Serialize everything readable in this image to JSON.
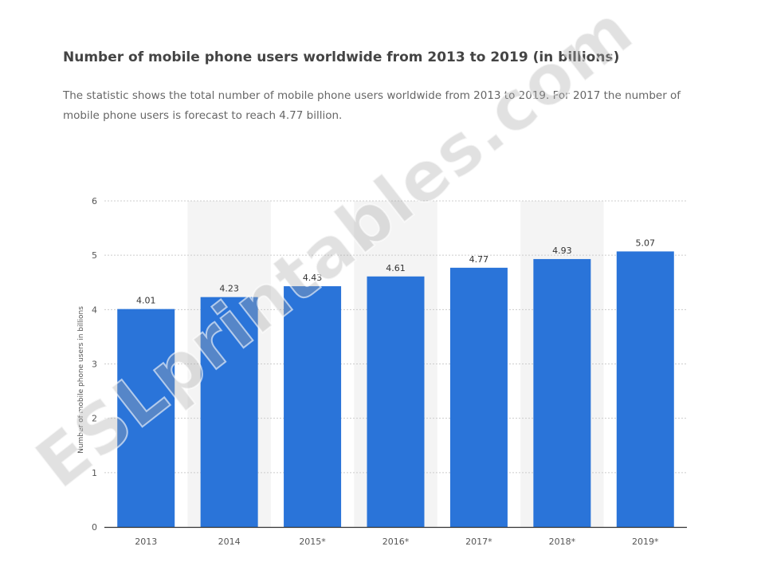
{
  "title": "Number of mobile phone users worldwide from 2013 to 2019 (in billions)",
  "subtitle": "The statistic shows the total number of mobile phone users worldwide from 2013 to 2019. For 2017 the number of mobile phone users is forecast to reach 4.77 billion.",
  "watermark": "ESLprintables.com",
  "colors": {
    "bar": "#2a74d9",
    "band": "#f4f4f4",
    "grid": "#cccccc",
    "axis": "#333333",
    "text": "#555555"
  },
  "chart_data": {
    "type": "bar",
    "categories": [
      "2013",
      "2014",
      "2015*",
      "2016*",
      "2017*",
      "2018*",
      "2019*"
    ],
    "values": [
      4.01,
      4.23,
      4.43,
      4.61,
      4.77,
      4.93,
      5.07
    ],
    "data_labels": [
      "4.01",
      "4.23",
      "4.43",
      "4.61",
      "4.77",
      "4.93",
      "5.07"
    ],
    "ylabel": "Number of mobile phone users in billions",
    "xlabel": "",
    "ylim": [
      0,
      6
    ],
    "yticks": [
      "0",
      "1",
      "2",
      "3",
      "4",
      "5",
      "6"
    ],
    "grid": true,
    "legend": "none"
  }
}
